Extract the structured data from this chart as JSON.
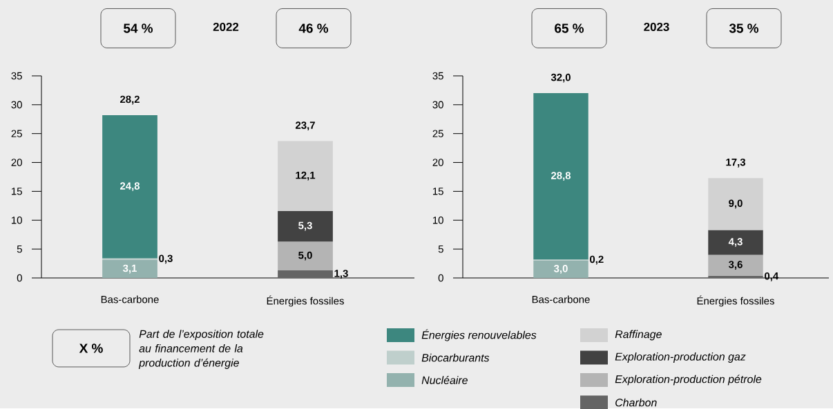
{
  "chart_data": [
    {
      "type": "bar",
      "title": "2022",
      "stacked": true,
      "categories": [
        "Bas-carbone",
        "Énergies fossiles"
      ],
      "series": [
        {
          "name": "Nucléaire",
          "color": "#93b2ae",
          "values": [
            3.1,
            null
          ],
          "value_labels": [
            "3,1",
            null
          ]
        },
        {
          "name": "Biocarburants",
          "color": "#bfcfcc",
          "values": [
            0.3,
            null
          ],
          "value_labels": [
            "0,3",
            null
          ]
        },
        {
          "name": "Énergies renouvelables",
          "color": "#3d877f",
          "values": [
            24.8,
            null
          ],
          "value_labels": [
            "24,8",
            null
          ]
        },
        {
          "name": "Charbon",
          "color": "#646464",
          "values": [
            null,
            1.3
          ],
          "value_labels": [
            null,
            "1,3"
          ]
        },
        {
          "name": "Exploration-production pétrole",
          "color": "#b4b4b4",
          "values": [
            null,
            5.0
          ],
          "value_labels": [
            null,
            "5,0"
          ]
        },
        {
          "name": "Exploration-production gaz",
          "color": "#424242",
          "values": [
            null,
            5.3
          ],
          "value_labels": [
            null,
            "5,3"
          ]
        },
        {
          "name": "Raffinage",
          "color": "#d2d2d2",
          "values": [
            null,
            12.1
          ],
          "value_labels": [
            null,
            "12,1"
          ]
        }
      ],
      "totals": [
        "28,2",
        "23,7"
      ],
      "ylim": [
        0,
        35
      ],
      "yticks": [
        0,
        5,
        10,
        15,
        20,
        25,
        30,
        35
      ],
      "legend": "bottom",
      "annotations": [
        "54 %",
        "46 %",
        "X %",
        "Part de l’exposition totale au financement de la production d’énergie"
      ]
    },
    {
      "type": "bar",
      "title": "2023",
      "stacked": true,
      "categories": [
        "Bas-carbone",
        "Énergies fossiles"
      ],
      "series": [
        {
          "color": "#93b2ae",
          "values": [
            3.0,
            null
          ],
          "value_labels": [
            "3,0",
            null
          ]
        },
        {
          "color": "#bfcfcc",
          "values": [
            0.2,
            null
          ],
          "value_labels": [
            "0,2",
            null
          ]
        },
        {
          "color": "#3d877f",
          "values": [
            28.8,
            null
          ],
          "value_labels": [
            "28,8",
            null
          ]
        },
        {
          "color": "#646464",
          "values": [
            null,
            0.4
          ],
          "value_labels": [
            null,
            "0,4"
          ]
        },
        {
          "color": "#b4b4b4",
          "values": [
            null,
            3.6
          ],
          "value_labels": [
            null,
            "3,6"
          ]
        },
        {
          "color": "#424242",
          "values": [
            null,
            4.3
          ],
          "value_labels": [
            null,
            "4,3"
          ]
        },
        {
          "color": "#d2d2d2",
          "values": [
            null,
            9.0
          ],
          "value_labels": [
            null,
            "9,0"
          ]
        }
      ],
      "totals": [
        "32,0",
        "17,3"
      ],
      "ylim": [
        0,
        35
      ],
      "yticks": [
        0,
        5,
        10,
        15,
        20,
        25,
        30,
        35
      ],
      "annotations": [
        "65 %",
        "35 %"
      ]
    }
  ]
}
